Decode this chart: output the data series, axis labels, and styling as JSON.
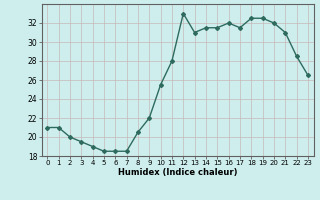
{
  "x": [
    0,
    1,
    2,
    3,
    4,
    5,
    6,
    7,
    8,
    9,
    10,
    11,
    12,
    13,
    14,
    15,
    16,
    17,
    18,
    19,
    20,
    21,
    22,
    23
  ],
  "y": [
    21.0,
    21.0,
    20.0,
    19.5,
    19.0,
    18.5,
    18.5,
    18.5,
    20.5,
    22.0,
    25.5,
    28.0,
    33.0,
    31.0,
    31.5,
    31.5,
    32.0,
    31.5,
    32.5,
    32.5,
    32.0,
    31.0,
    28.5,
    26.5
  ],
  "line_color": "#2e6b5e",
  "marker": "D",
  "markersize": 2.0,
  "linewidth": 1.0,
  "xlabel": "Humidex (Indice chaleur)",
  "ylim": [
    18,
    34
  ],
  "xlim": [
    -0.5,
    23.5
  ],
  "yticks": [
    18,
    20,
    22,
    24,
    26,
    28,
    30,
    32
  ],
  "xticks": [
    0,
    1,
    2,
    3,
    4,
    5,
    6,
    7,
    8,
    9,
    10,
    11,
    12,
    13,
    14,
    15,
    16,
    17,
    18,
    19,
    20,
    21,
    22,
    23
  ],
  "bg_color": "#cdeeed",
  "grid_color": "#c8b8b8",
  "axis_color": "#606060"
}
